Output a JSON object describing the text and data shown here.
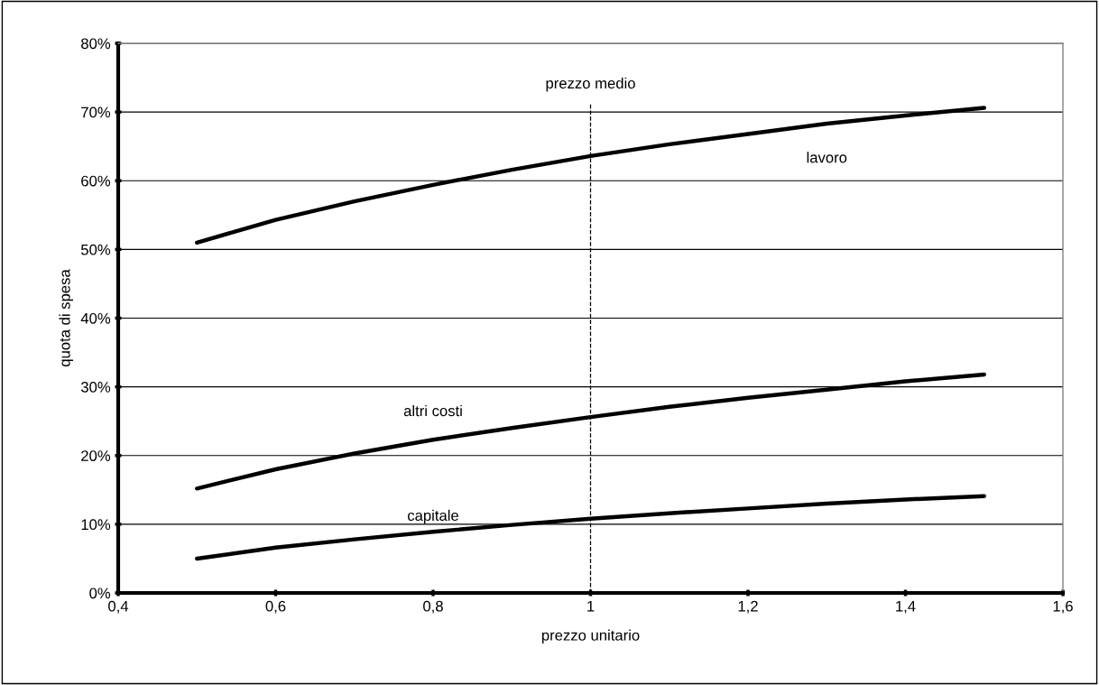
{
  "chart_data": {
    "type": "line",
    "xlabel": "prezzo unitario",
    "ylabel": "quota di spesa",
    "x": [
      0.5,
      0.6,
      0.7,
      0.8,
      0.9,
      1.0,
      1.1,
      1.2,
      1.3,
      1.4,
      1.5
    ],
    "series": [
      {
        "name": "lavoro",
        "color": "#000000",
        "values": [
          51,
          54.3,
          57,
          59.4,
          61.6,
          63.6,
          65.3,
          66.8,
          68.3,
          69.5,
          70.6
        ]
      },
      {
        "name": "altri costi",
        "color": "#000000",
        "values": [
          15.2,
          18,
          20.3,
          22.3,
          24,
          25.6,
          27.1,
          28.4,
          29.6,
          30.8,
          31.8
        ]
      },
      {
        "name": "capitale",
        "color": "#000000",
        "values": [
          5,
          6.6,
          7.8,
          8.9,
          9.9,
          10.8,
          11.6,
          12.3,
          13,
          13.6,
          14.1
        ]
      }
    ],
    "xlim": [
      0.4,
      1.6
    ],
    "xticks": [
      {
        "value": 0.4,
        "label": "0,4"
      },
      {
        "value": 0.6,
        "label": "0,6"
      },
      {
        "value": 0.8,
        "label": "0,8"
      },
      {
        "value": 1,
        "label": "1"
      },
      {
        "value": 1.2,
        "label": "1,2"
      },
      {
        "value": 1.4,
        "label": "1,4"
      },
      {
        "value": 1.6,
        "label": "1,6"
      }
    ],
    "ylim": [
      0,
      80
    ],
    "yticks": [
      {
        "value": 0,
        "label": "0%"
      },
      {
        "value": 10,
        "label": "10%"
      },
      {
        "value": 20,
        "label": "20%"
      },
      {
        "value": 30,
        "label": "30%"
      },
      {
        "value": 40,
        "label": "40%"
      },
      {
        "value": 50,
        "label": "50%"
      },
      {
        "value": 60,
        "label": "60%"
      },
      {
        "value": 70,
        "label": "70%"
      },
      {
        "value": 80,
        "label": "80%"
      }
    ],
    "ref_lines": [
      {
        "axis": "x",
        "value": 1,
        "label": "prezzo medio",
        "color": "#000000",
        "line_style": "dashed"
      }
    ],
    "grid": "y",
    "legend": false,
    "marker": "none",
    "line_style": "solid"
  }
}
